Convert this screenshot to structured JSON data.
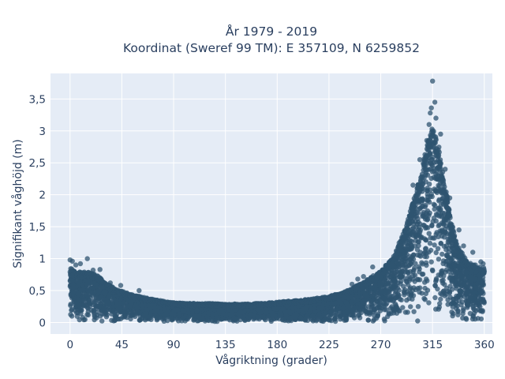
{
  "chart_data": {
    "type": "scatter",
    "title": "År 1979 - 2019",
    "subtitle": "Koordinat (Sweref 99 TM): E 357109, N 6259852",
    "xlabel": "Vågriktning (grader)",
    "ylabel": "Signifikant våghöjd (m)",
    "xlim": [
      -17,
      367
    ],
    "ylim": [
      -0.18,
      3.9
    ],
    "x_ticks": [
      0,
      45,
      90,
      135,
      180,
      225,
      270,
      315,
      360
    ],
    "x_tick_labels": [
      "0",
      "45",
      "90",
      "135",
      "180",
      "225",
      "270",
      "315",
      "360"
    ],
    "y_ticks": [
      0,
      0.5,
      1,
      1.5,
      2,
      2.5,
      3,
      3.5
    ],
    "y_tick_labels": [
      "0",
      "0,5",
      "1",
      "1,5",
      "2",
      "2,5",
      "3",
      "3,5"
    ],
    "grid": true,
    "marker_color": "#2f5470",
    "plot_background": "#e5ecf6",
    "envelope": {
      "x": [
        0,
        5,
        10,
        15,
        20,
        25,
        30,
        40,
        50,
        60,
        70,
        80,
        90,
        100,
        110,
        120,
        135,
        150,
        165,
        180,
        195,
        210,
        225,
        240,
        250,
        260,
        270,
        280,
        290,
        295,
        300,
        305,
        310,
        315,
        320,
        325,
        330,
        335,
        340,
        345,
        350,
        355,
        360
      ],
      "y_max": [
        0.85,
        0.8,
        0.78,
        0.78,
        0.76,
        0.72,
        0.62,
        0.52,
        0.45,
        0.4,
        0.36,
        0.33,
        0.3,
        0.29,
        0.29,
        0.29,
        0.28,
        0.28,
        0.29,
        0.31,
        0.33,
        0.36,
        0.4,
        0.48,
        0.58,
        0.68,
        0.8,
        1.0,
        1.4,
        1.7,
        2.0,
        2.35,
        2.75,
        3.1,
        2.8,
        2.3,
        1.7,
        1.3,
        1.1,
        0.95,
        0.9,
        0.88,
        0.85
      ]
    },
    "notable_points": [
      {
        "x": 315,
        "y": 3.78
      },
      {
        "x": 317,
        "y": 3.45
      },
      {
        "x": 314,
        "y": 3.36
      },
      {
        "x": 313,
        "y": 3.28
      },
      {
        "x": 318,
        "y": 3.2
      },
      {
        "x": 312,
        "y": 3.1
      },
      {
        "x": 322,
        "y": 2.95
      },
      {
        "x": 310,
        "y": 2.85
      },
      {
        "x": 320,
        "y": 2.7
      },
      {
        "x": 304,
        "y": 2.55
      },
      {
        "x": 298,
        "y": 2.15
      },
      {
        "x": 326,
        "y": 2.4
      },
      {
        "x": 330,
        "y": 1.95
      },
      {
        "x": 338,
        "y": 1.45
      },
      {
        "x": 293,
        "y": 1.55
      },
      {
        "x": 287,
        "y": 1.2
      },
      {
        "x": 15,
        "y": 1.0
      },
      {
        "x": 0,
        "y": 0.98
      },
      {
        "x": 2,
        "y": 0.96
      },
      {
        "x": 9,
        "y": 0.92
      },
      {
        "x": 5,
        "y": 0.9
      },
      {
        "x": 26,
        "y": 0.83
      },
      {
        "x": 20,
        "y": 0.82
      },
      {
        "x": 263,
        "y": 0.87
      },
      {
        "x": 255,
        "y": 0.72
      },
      {
        "x": 250,
        "y": 0.68
      },
      {
        "x": 245,
        "y": 0.6
      },
      {
        "x": 44,
        "y": 0.58
      },
      {
        "x": 35,
        "y": 0.62
      },
      {
        "x": 60,
        "y": 0.5
      },
      {
        "x": 342,
        "y": 1.2
      },
      {
        "x": 350,
        "y": 1.1
      },
      {
        "x": 357,
        "y": 0.95
      },
      {
        "x": 359,
        "y": 0.92
      }
    ]
  }
}
